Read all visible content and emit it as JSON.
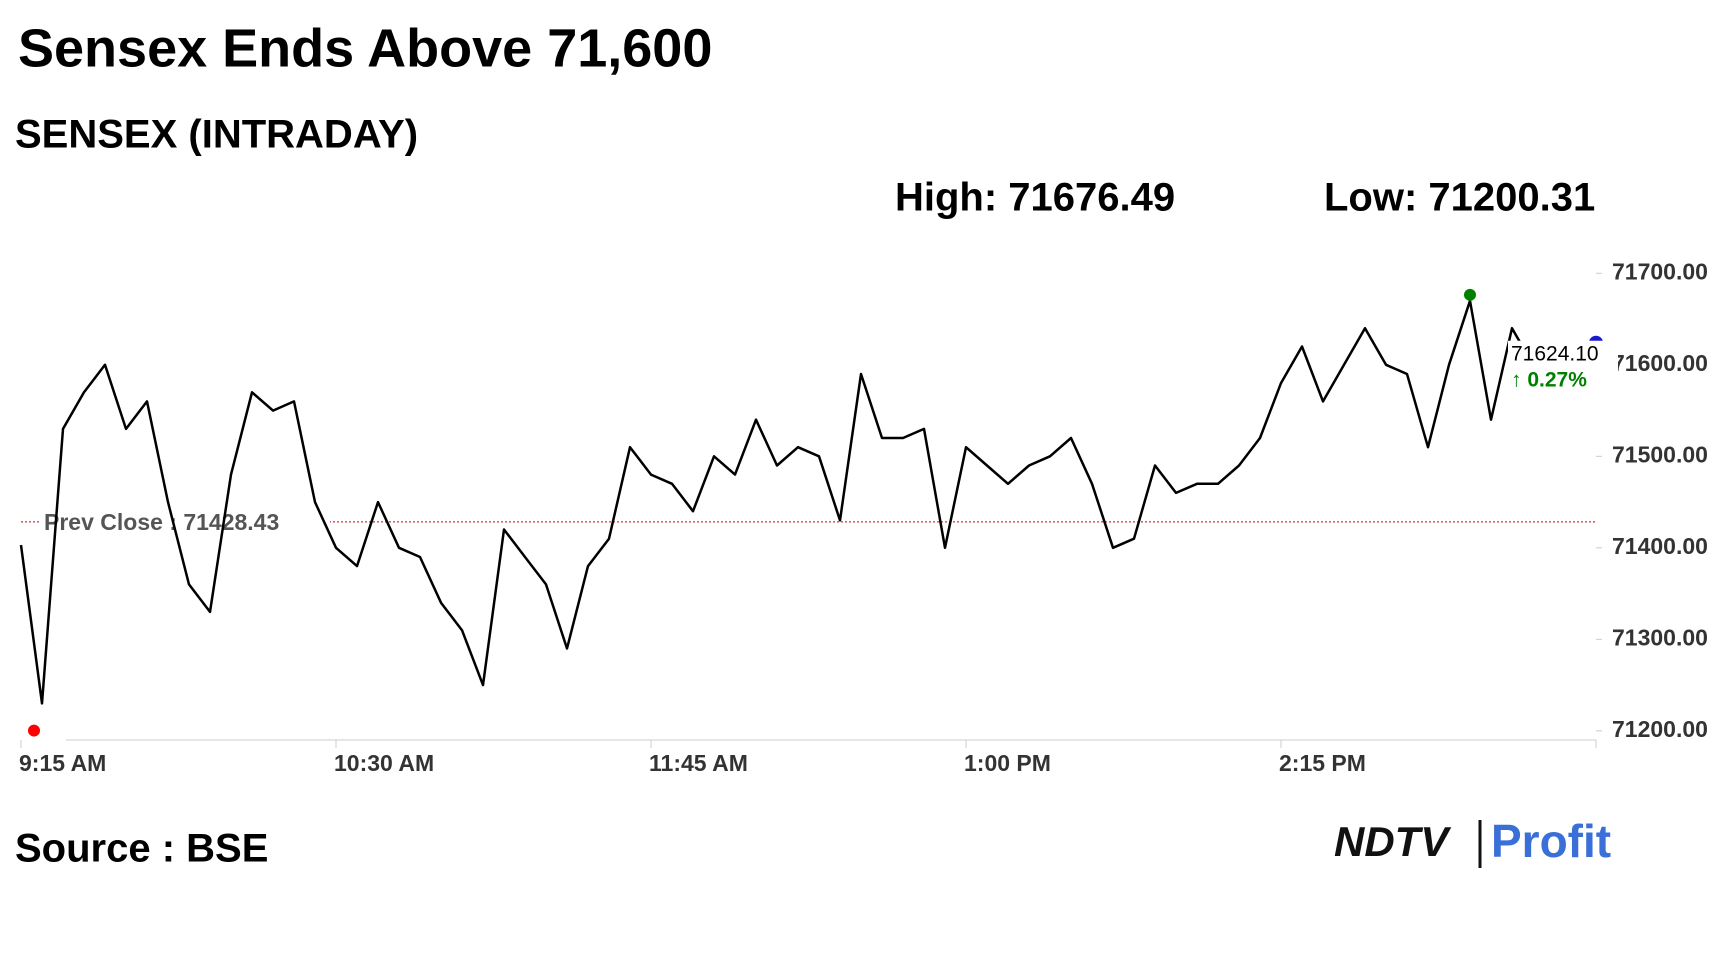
{
  "chart_data": {
    "type": "line",
    "title": "Sensex Ends Above 71,600",
    "subtitle": "SENSEX (INTRADAY)",
    "high": {
      "label": "High: 71676.49",
      "value": 71676.49
    },
    "low": {
      "label": "Low: 71200.31",
      "value": 71200.31
    },
    "prev_close": {
      "label": "Prev Close : 71428.43",
      "value": 71428.43
    },
    "close": 71624.1,
    "close_label": "71624.10",
    "change": 0.27,
    "change_label": "↑ 0.27%",
    "source": "Source : BSE",
    "logo": {
      "left": "NDTV",
      "right": "Profit"
    },
    "x": [
      "9:15 AM",
      "9:20 AM",
      "9:25 AM",
      "9:30 AM",
      "9:35 AM",
      "9:40 AM",
      "9:45 AM",
      "9:50 AM",
      "9:55 AM",
      "10:00 AM",
      "10:05 AM",
      "10:10 AM",
      "10:15 AM",
      "10:20 AM",
      "10:25 AM",
      "10:30 AM",
      "10:35 AM",
      "10:40 AM",
      "10:45 AM",
      "10:50 AM",
      "10:55 AM",
      "11:00 AM",
      "11:05 AM",
      "11:10 AM",
      "11:15 AM",
      "11:20 AM",
      "11:25 AM",
      "11:30 AM",
      "11:35 AM",
      "11:40 AM",
      "11:45 AM",
      "11:50 AM",
      "11:55 AM",
      "12:00 PM",
      "12:05 PM",
      "12:10 PM",
      "12:15 PM",
      "12:20 PM",
      "12:25 PM",
      "12:30 PM",
      "12:35 PM",
      "12:40 PM",
      "12:45 PM",
      "12:50 PM",
      "12:55 PM",
      "1:00 PM",
      "1:05 PM",
      "1:10 PM",
      "1:15 PM",
      "1:20 PM",
      "1:25 PM",
      "1:30 PM",
      "1:35 PM",
      "1:40 PM",
      "1:45 PM",
      "1:50 PM",
      "1:55 PM",
      "2:00 PM",
      "2:05 PM",
      "2:10 PM",
      "2:15 PM",
      "2:20 PM",
      "2:25 PM",
      "2:30 PM",
      "2:35 PM",
      "2:40 PM",
      "2:45 PM",
      "2:50 PM",
      "2:55 PM",
      "3:00 PM",
      "3:05 PM",
      "3:10 PM",
      "3:15 PM"
    ],
    "series": [
      {
        "name": "SENSEX",
        "color": "#000000",
        "values": [
          71403,
          71230,
          71530,
          71570,
          71600,
          71530,
          71560,
          71450,
          71360,
          71330,
          71480,
          71570,
          71550,
          71560,
          71450,
          71400,
          71380,
          71450,
          71400,
          71390,
          71340,
          71310,
          71250,
          71420,
          71390,
          71360,
          71290,
          71380,
          71410,
          71510,
          71480,
          71470,
          71440,
          71500,
          71480,
          71540,
          71490,
          71510,
          71500,
          71430,
          71590,
          71520,
          71520,
          71530,
          71400,
          71510,
          71490,
          71470,
          71490,
          71500,
          71520,
          71470,
          71400,
          71410,
          71490,
          71460,
          71470,
          71470,
          71490,
          71520,
          71580,
          71620,
          71560,
          71600,
          71640,
          71600,
          71590,
          71510,
          71600,
          71670,
          71540,
          71640,
          71600
        ]
      }
    ],
    "xlim": [
      "9:15 AM",
      "3:30 PM"
    ],
    "xticks": [
      "9:15 AM",
      "10:30 AM",
      "11:45 AM",
      "1:00 PM",
      "2:15 PM"
    ],
    "ylim": [
      71190,
      71720
    ],
    "yticks": [
      {
        "value": 71200,
        "label": "71200.00"
      },
      {
        "value": 71300,
        "label": "71300.00"
      },
      {
        "value": 71400,
        "label": "71400.00"
      },
      {
        "value": 71500,
        "label": "71500.00"
      },
      {
        "value": 71600,
        "label": "71600.00"
      },
      {
        "value": 71700,
        "label": "71700.00"
      }
    ],
    "grid": false
  }
}
